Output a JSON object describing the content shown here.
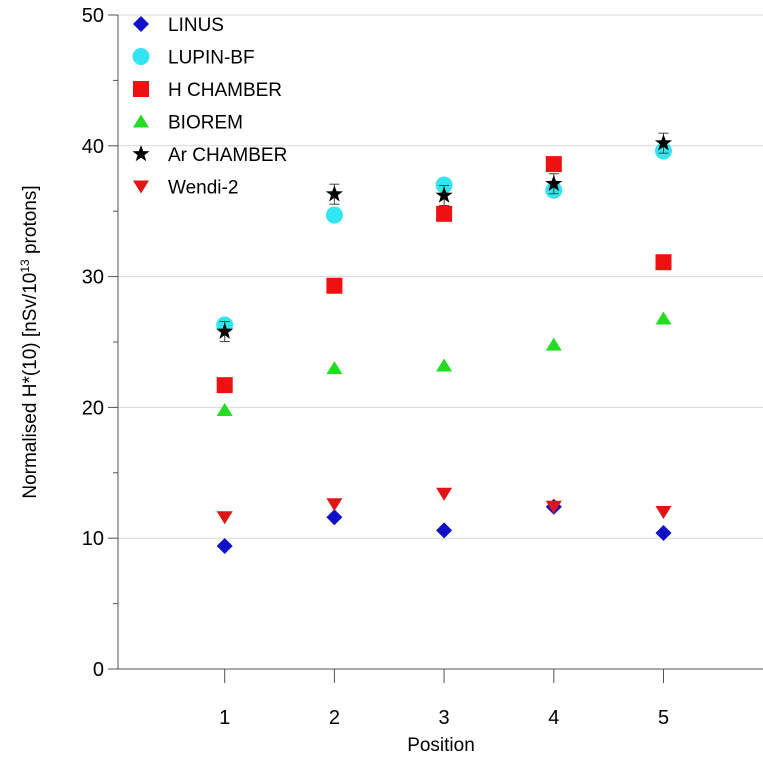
{
  "chart_data": {
    "type": "scatter",
    "xlabel": "Position",
    "ylabel_prefix": "Normalised H*(10) [nSv/10",
    "ylabel_sup": "13",
    "ylabel_suffix": " protons]",
    "xlim": [
      0,
      6
    ],
    "ylim": [
      0,
      50
    ],
    "x_ticks": [
      "1",
      "2",
      "3",
      "4",
      "5"
    ],
    "y_ticks": [
      "0",
      "10",
      "20",
      "30",
      "40",
      "50"
    ],
    "grid": "horizontal",
    "legend_position": "top-left",
    "series": [
      {
        "name": "LINUS",
        "marker": "diamond",
        "color": "#1010c8",
        "x": [
          1,
          2,
          3,
          4,
          5
        ],
        "y": [
          9.4,
          11.6,
          10.6,
          12.4,
          10.4
        ]
      },
      {
        "name": "LUPIN-BF",
        "marker": "circle",
        "color": "#33e5f0",
        "x": [
          1,
          2,
          3,
          4,
          5
        ],
        "y": [
          26.3,
          34.7,
          37.0,
          36.6,
          39.6
        ]
      },
      {
        "name": "H CHAMBER",
        "marker": "square",
        "color": "#ee1111",
        "x": [
          1,
          2,
          3,
          4,
          5
        ],
        "y": [
          21.7,
          29.3,
          34.8,
          38.6,
          31.1
        ]
      },
      {
        "name": "BIOREM",
        "marker": "triangle-up",
        "color": "#22dd22",
        "x": [
          1,
          2,
          3,
          4,
          5
        ],
        "y": [
          19.8,
          23.0,
          23.2,
          24.8,
          26.8
        ]
      },
      {
        "name": "Ar CHAMBER",
        "marker": "star",
        "color": "#000000",
        "x": [
          1,
          2,
          3,
          4,
          5
        ],
        "y": [
          25.8,
          36.3,
          36.2,
          37.1,
          40.2
        ]
      },
      {
        "name": "Wendi-2",
        "marker": "triangle-down",
        "color": "#dd1515",
        "x": [
          1,
          2,
          3,
          4,
          5
        ],
        "y": [
          11.6,
          12.6,
          13.4,
          12.4,
          12.0
        ]
      }
    ]
  }
}
